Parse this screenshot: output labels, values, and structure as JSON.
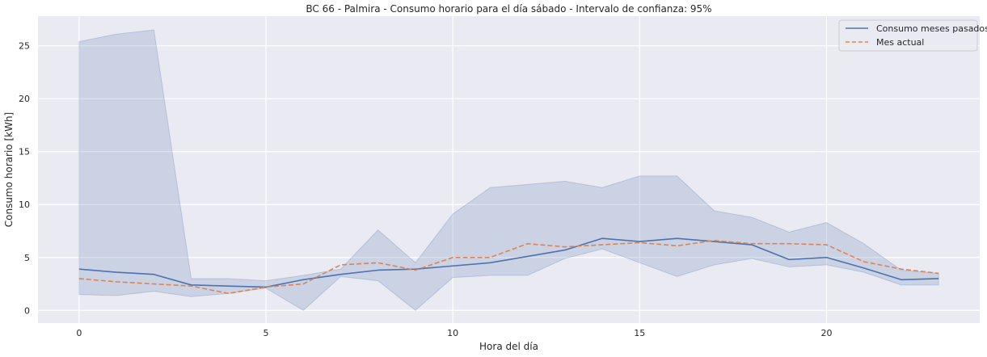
{
  "chart_data": {
    "type": "line",
    "title": "BC 66 - Palmira - Consumo horario para el día sábado - Intervalo de confianza: 95%",
    "xlabel": "Hora del día",
    "ylabel": "Consumo horario [kWh]",
    "xlim": [
      -1.1,
      24.1
    ],
    "ylim": [
      -1.2,
      27.8
    ],
    "xticks": [
      0,
      5,
      10,
      15,
      20
    ],
    "yticks": [
      0,
      5,
      10,
      15,
      20,
      25
    ],
    "grid": true,
    "legend_position": "top-right",
    "x": [
      0,
      1,
      2,
      3,
      4,
      5,
      6,
      7,
      8,
      9,
      10,
      11,
      12,
      13,
      14,
      15,
      16,
      17,
      18,
      19,
      20,
      21,
      22,
      23
    ],
    "series": [
      {
        "name": "Consumo meses pasados",
        "style": "solid",
        "color": "#4c72b0",
        "values": [
          3.9,
          3.6,
          3.4,
          2.4,
          2.3,
          2.2,
          2.9,
          3.4,
          3.8,
          3.9,
          4.2,
          4.5,
          5.1,
          5.7,
          6.8,
          6.5,
          6.8,
          6.5,
          6.2,
          4.8,
          5.0,
          4.0,
          2.9,
          3.0
        ],
        "ci_lower": [
          1.5,
          1.4,
          1.8,
          1.3,
          1.6,
          2.1,
          0.0,
          3.2,
          2.8,
          0.0,
          3.1,
          3.3,
          3.3,
          4.9,
          5.8,
          4.5,
          3.2,
          4.3,
          4.9,
          4.1,
          4.3,
          3.6,
          2.4,
          2.4
        ],
        "ci_upper": [
          25.4,
          26.1,
          26.5,
          3.0,
          3.0,
          2.8,
          3.3,
          3.9,
          7.6,
          4.5,
          9.1,
          11.6,
          11.9,
          12.2,
          11.6,
          12.7,
          12.7,
          9.4,
          8.8,
          7.4,
          8.3,
          6.3,
          3.8,
          3.5
        ]
      },
      {
        "name": "Mes actual",
        "style": "dashed",
        "color": "#dd8452",
        "values": [
          3.0,
          2.7,
          2.5,
          2.3,
          1.6,
          2.2,
          2.5,
          4.3,
          4.5,
          3.8,
          5.0,
          5.0,
          6.3,
          6.0,
          6.2,
          6.4,
          6.1,
          6.6,
          6.3,
          6.3,
          6.2,
          4.6,
          3.9,
          3.5
        ]
      }
    ]
  }
}
